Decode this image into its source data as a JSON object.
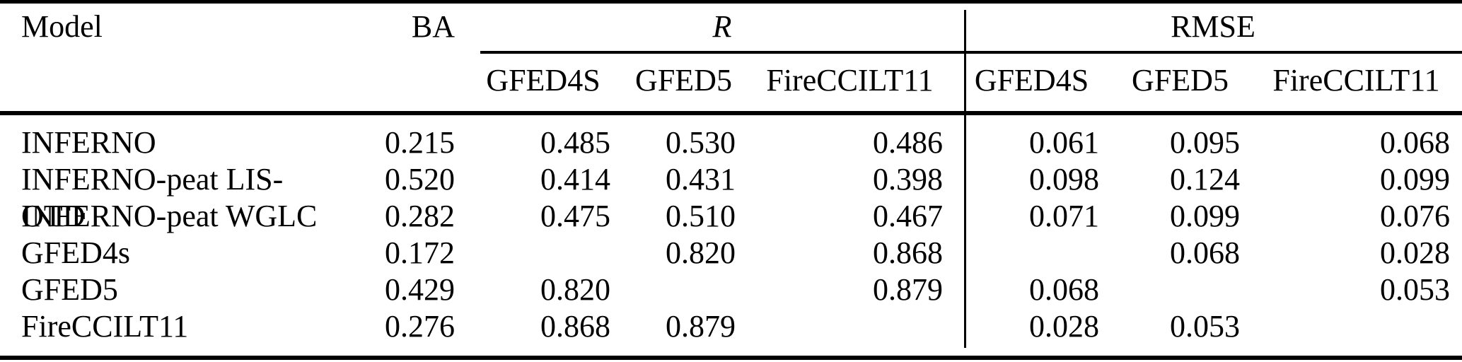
{
  "table": {
    "headers": {
      "model": "Model",
      "ba": "BA",
      "r_group": "R",
      "rmse_group": "RMSE"
    },
    "subheaders": {
      "r": [
        "GFED4S",
        "GFED5",
        "FireCCILT11"
      ],
      "rmse": [
        "GFED4S",
        "GFED5",
        "FireCCILT11"
      ]
    },
    "rows": [
      {
        "model": "INFERNO",
        "ba": "0.215",
        "r": [
          "0.485",
          "0.530",
          "0.486"
        ],
        "rmse": [
          "0.061",
          "0.095",
          "0.068"
        ]
      },
      {
        "model": "INFERNO-peat LIS-OTD",
        "ba": "0.520",
        "r": [
          "0.414",
          "0.431",
          "0.398"
        ],
        "rmse": [
          "0.098",
          "0.124",
          "0.099"
        ]
      },
      {
        "model": "INFERNO-peat WGLC",
        "ba": "0.282",
        "r": [
          "0.475",
          "0.510",
          "0.467"
        ],
        "rmse": [
          "0.071",
          "0.099",
          "0.076"
        ]
      },
      {
        "model": "GFED4s",
        "ba": "0.172",
        "r": [
          "",
          "0.820",
          "0.868"
        ],
        "rmse": [
          "",
          "0.068",
          "0.028"
        ]
      },
      {
        "model": "GFED5",
        "ba": "0.429",
        "r": [
          "0.820",
          "",
          "0.879"
        ],
        "rmse": [
          "0.068",
          "",
          "0.053"
        ]
      },
      {
        "model": "FireCCILT11",
        "ba": "0.276",
        "r": [
          "0.868",
          "0.879",
          ""
        ],
        "rmse": [
          "0.028",
          "0.053",
          ""
        ]
      }
    ],
    "colors": {
      "text": "#000000",
      "background": "#ffffff",
      "rule": "#000000"
    }
  }
}
